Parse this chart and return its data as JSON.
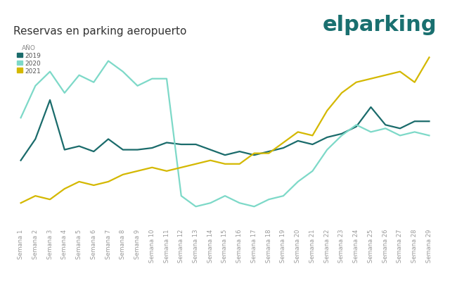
{
  "title": "Reservas en parking aeropuerto",
  "legend_title": "AÑO",
  "legend_labels": [
    "2019",
    "2020",
    "2021"
  ],
  "color_2019": "#1a6b6b",
  "color_2020": "#7dd9c8",
  "color_2021": "#d4b800",
  "x_labels": [
    "Semana 1",
    "Semana 2",
    "Semana 3",
    "Semana 4",
    "Semana 5",
    "Semana 6",
    "Semana 7",
    "Semana 8",
    "Semana 9",
    "Semana 10",
    "Semana 11",
    "Semana 12",
    "Semana 13",
    "Semana 14",
    "Semana 15",
    "Semana 16",
    "Semana 17",
    "Semana 18",
    "Semana 19",
    "Semana 20",
    "Semana 21",
    "Semana 22",
    "Semana 23",
    "Semana 24",
    "Semana 25",
    "Semana 26",
    "Semana 27",
    "Semana 28",
    "Semana 29"
  ],
  "data_2019": [
    38,
    50,
    72,
    44,
    46,
    43,
    50,
    44,
    44,
    45,
    48,
    47,
    47,
    44,
    41,
    43,
    41,
    43,
    45,
    49,
    47,
    51,
    53,
    57,
    68,
    58,
    56,
    60,
    60
  ],
  "data_2020": [
    62,
    80,
    88,
    76,
    86,
    82,
    94,
    88,
    80,
    84,
    84,
    18,
    12,
    14,
    18,
    14,
    12,
    16,
    18,
    26,
    32,
    44,
    52,
    58,
    54,
    56,
    52,
    54,
    52
  ],
  "data_2021": [
    14,
    18,
    16,
    22,
    26,
    24,
    26,
    30,
    32,
    34,
    32,
    34,
    36,
    38,
    36,
    36,
    42,
    42,
    48,
    54,
    52,
    66,
    76,
    82,
    84,
    86,
    88,
    82,
    96
  ],
  "background_color": "#ffffff",
  "grid_color": "#e8e8e8",
  "title_fontsize": 11,
  "tick_fontsize": 6,
  "line_width": 1.6,
  "logo_fontsize": 22,
  "logo_color": "#1a7070"
}
